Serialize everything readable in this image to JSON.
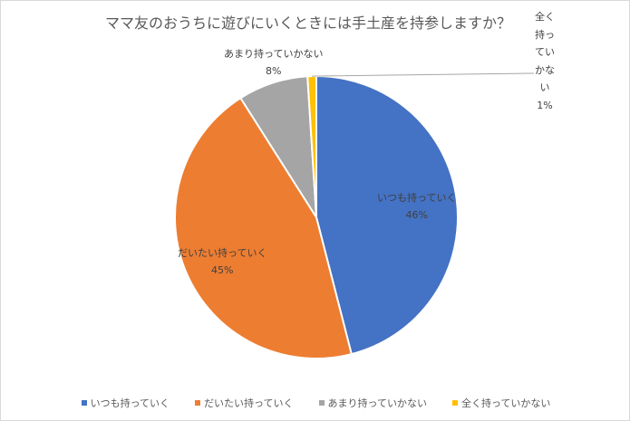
{
  "chart_data": {
    "type": "pie",
    "title": "ママ友のおうちに遊びにいくときには手土産を持参しますか？",
    "categories": [
      "いつも持っていく",
      "だいたい持っていく",
      "あまり持っていかない",
      "全く持っていかない"
    ],
    "values": [
      46,
      45,
      8,
      1
    ],
    "value_labels": [
      "46%",
      "45%",
      "8%",
      "1%"
    ],
    "colors": [
      "#4472c4",
      "#ed7d31",
      "#a5a5a5",
      "#ffc000"
    ],
    "start_angle": "top",
    "direction": "clockwise",
    "legend": "bottom"
  }
}
